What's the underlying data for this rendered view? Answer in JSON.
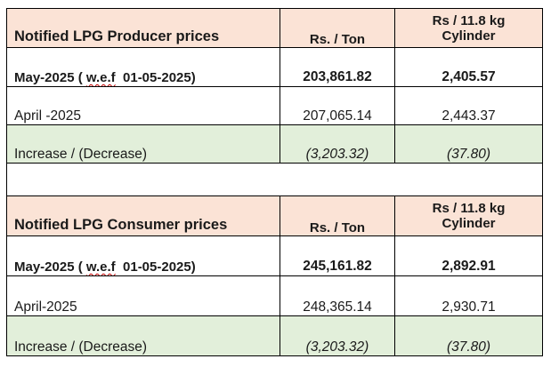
{
  "producer": {
    "header": {
      "title": "Notified LPG Producer prices",
      "col_ton": "Rs. / Ton",
      "col_cyl_line1": "Rs / 11.8 kg",
      "col_cyl_line2": "Cylinder"
    },
    "rows": [
      {
        "label_pre": "May-2025 ( ",
        "label_sq": "w.e.f",
        "label_post": "  01-05-2025)",
        "ton": "203,861.82",
        "cyl": "2,405.57"
      },
      {
        "label": "April -2025",
        "ton": "207,065.14",
        "cyl": "2,443.37"
      },
      {
        "label": "Increase / (Decrease)",
        "ton": "(3,203.32)",
        "cyl": "(37.80)"
      }
    ]
  },
  "consumer": {
    "header": {
      "title": "Notified LPG Consumer prices",
      "col_ton": "Rs. / Ton",
      "col_cyl_line1": "Rs / 11.8 kg",
      "col_cyl_line2": "Cylinder"
    },
    "rows": [
      {
        "label_pre": "May-2025 ( ",
        "label_sq": "w.e.f",
        "label_post": "  01-05-2025)",
        "ton": "245,161.82",
        "cyl": "2,892.91"
      },
      {
        "label": "April-2025",
        "ton": "248,365.14",
        "cyl": "2,930.71"
      },
      {
        "label": "Increase / (Decrease)",
        "ton": "(3,203.32)",
        "cyl": "(37.80)"
      }
    ]
  },
  "colors": {
    "header_bg": "#fbe3d6",
    "increase_bg": "#e2efda",
    "spell_underline": "#c00000"
  }
}
